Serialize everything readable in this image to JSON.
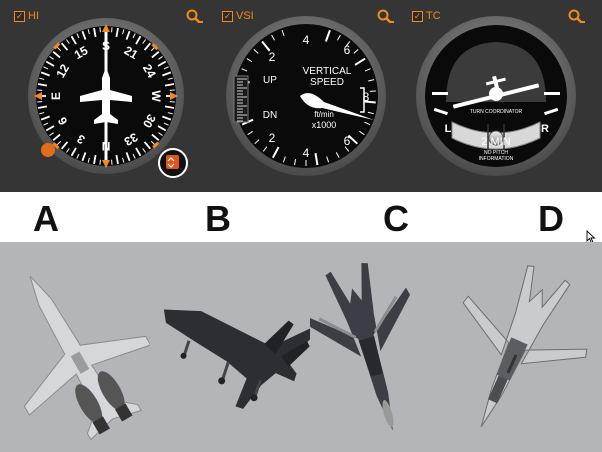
{
  "panel": {
    "gauges": [
      {
        "id": "hi",
        "label": "HI",
        "checked": true
      },
      {
        "id": "vsi",
        "label": "VSI",
        "checked": true
      },
      {
        "id": "tc",
        "label": "TC",
        "checked": true
      }
    ],
    "accent_color": "#f28a1c"
  },
  "heading_indicator": {
    "ticks": [
      "S",
      "21",
      "24",
      "W",
      "30",
      "33",
      "N",
      "3",
      "6",
      "E",
      "12",
      "15"
    ]
  },
  "vsi": {
    "title_line1": "VERTICAL",
    "title_line2": "SPEED",
    "units_line1": "ft/min",
    "units_line2": "x1000",
    "up_label": "UP",
    "dn_label": "DN",
    "upper_numbers": [
      "2",
      "4",
      "6"
    ],
    "lower_numbers": [
      "2",
      "4",
      "6"
    ],
    "side_number": "8"
  },
  "turn_coordinator": {
    "title": "TURN COORDINATOR",
    "left_label": "L",
    "right_label": "R",
    "time_label": "2 MIN",
    "note_line1": "NO PITCH",
    "note_line2": "INFORMATION"
  },
  "options": [
    "A",
    "B",
    "C",
    "D"
  ]
}
